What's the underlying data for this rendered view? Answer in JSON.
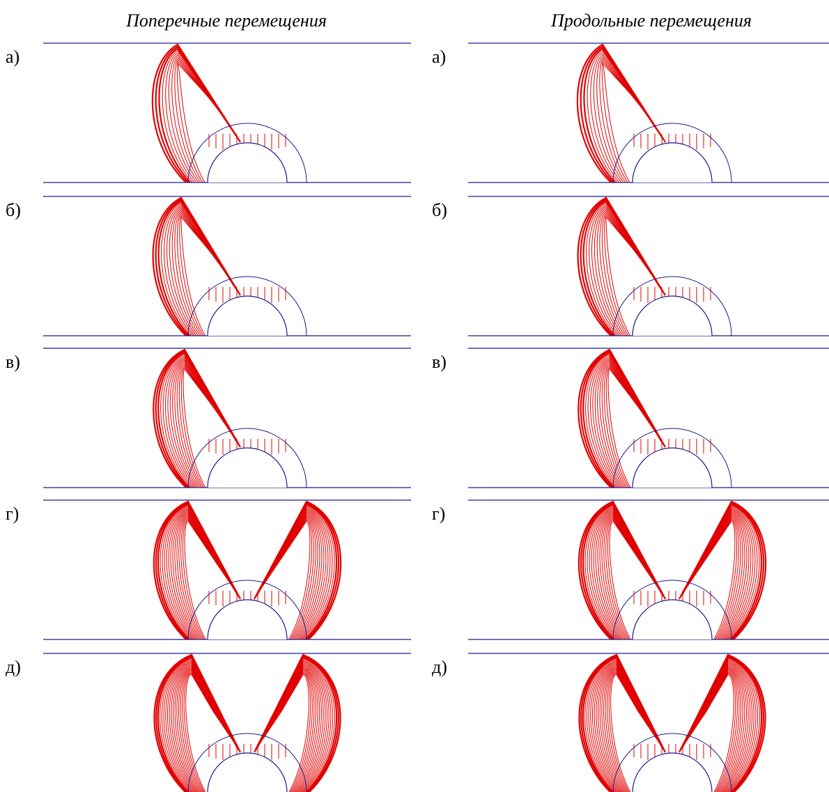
{
  "columns": [
    {
      "title": "Поперечные перемещения",
      "panels": [
        "а)",
        "б)",
        "в)",
        "г)",
        "д)"
      ]
    },
    {
      "title": "Продольные перемещения",
      "panels": [
        "а)",
        "б)",
        "в)",
        "г)",
        "д)"
      ]
    }
  ]
}
